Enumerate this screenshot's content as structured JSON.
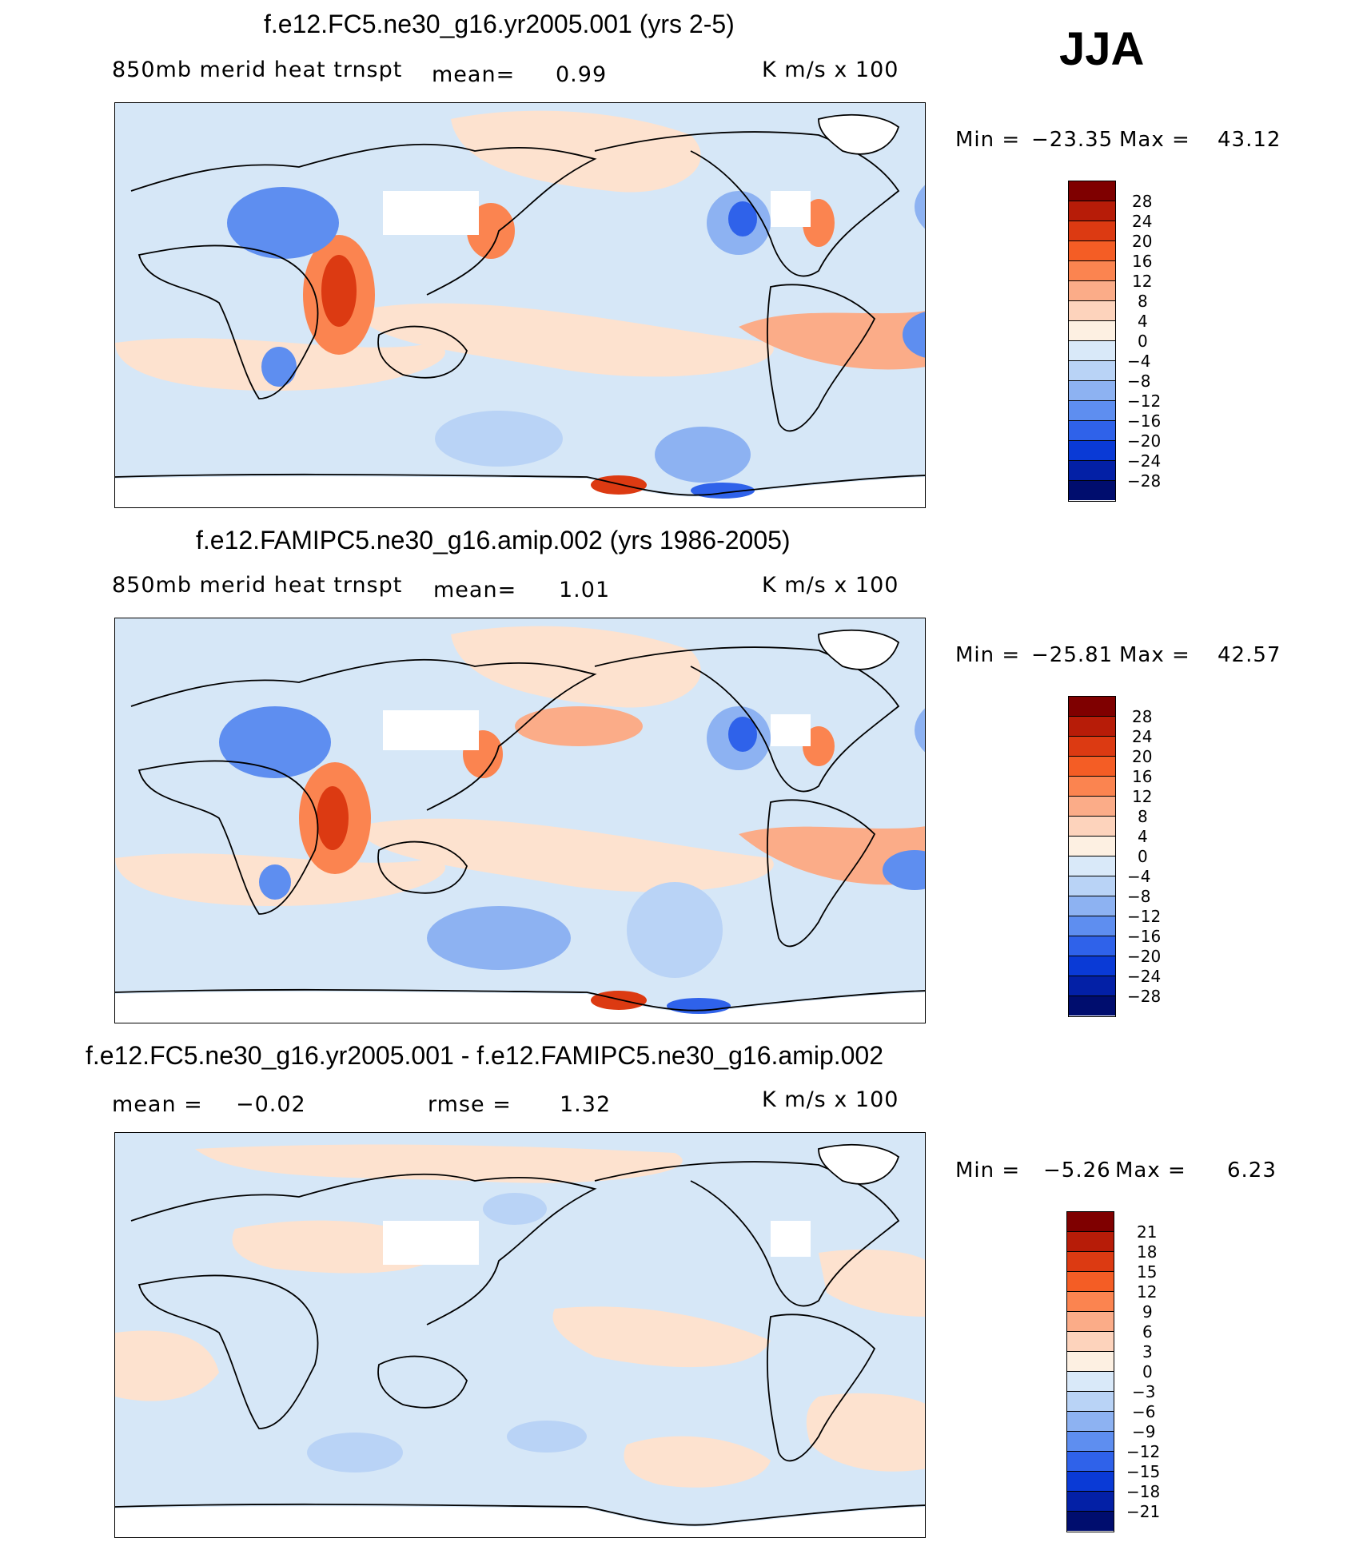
{
  "season": "JJA",
  "colors": {
    "legend_14": [
      "#7f0000",
      "#b71c08",
      "#dc3a12",
      "#f45d25",
      "#fb8450",
      "#fbac88",
      "#fdd3bc",
      "#fdf0e2",
      "#d9e9f9",
      "#b9d3f6",
      "#8db2f2",
      "#5e8ef0",
      "#2f62ea",
      "#0a3ad6",
      "#0320a6",
      "#000d6e"
    ],
    "ocean_neutral": "#d6e7f7",
    "warm_light": "#fde2cf",
    "coast": "#000000"
  },
  "panels": [
    {
      "title": "f.e12.FC5.ne30_g16.yr2005.001 (yrs 2-5)",
      "left_label": "850mb  merid  heat  trnspt",
      "mean_label": "mean=",
      "mean_value": "0.99",
      "units": "K  m/s  x  100",
      "min_label": "Min  =",
      "min_value": "−23.35",
      "max_label": "Max  =",
      "max_value": "43.12",
      "colorbar_labels": [
        "28",
        "24",
        "20",
        "16",
        "12",
        "8",
        "4",
        "0",
        "−4",
        "−8",
        "−12",
        "−16",
        "−20",
        "−24",
        "−28"
      ]
    },
    {
      "title": "f.e12.FAMIPC5.ne30_g16.amip.002 (yrs 1986-2005)",
      "left_label": "850mb  merid  heat  trnspt",
      "mean_label": "mean=",
      "mean_value": "1.01",
      "units": "K  m/s  x  100",
      "min_label": "Min  =",
      "min_value": "−25.81",
      "max_label": "Max  =",
      "max_value": "42.57",
      "colorbar_labels": [
        "28",
        "24",
        "20",
        "16",
        "12",
        "8",
        "4",
        "0",
        "−4",
        "−8",
        "−12",
        "−16",
        "−20",
        "−24",
        "−28"
      ]
    },
    {
      "title": "f.e12.FC5.ne30_g16.yr2005.001 - f.e12.FAMIPC5.ne30_g16.amip.002",
      "mean_label": "mean  =",
      "mean_value": "−0.02",
      "rmse_label": "rmse  =",
      "rmse_value": "1.32",
      "units": "K  m/s  x  100",
      "min_label": "Min  =",
      "min_value": "−5.26",
      "max_label": "Max  =",
      "max_value": "6.23",
      "colorbar_labels": [
        "21",
        "18",
        "15",
        "12",
        "9",
        "6",
        "3",
        "0",
        "−3",
        "−6",
        "−9",
        "−12",
        "−15",
        "−18",
        "−21"
      ]
    }
  ],
  "chart_data": [
    {
      "type": "heatmap",
      "title": "f.e12.FC5.ne30_g16.yr2005.001 (yrs 2-5)",
      "variable": "850mb merid heat trnspt",
      "units": "K m/s x 100",
      "mean": 0.99,
      "min": -23.35,
      "max": 43.12,
      "contour_levels": [
        -28,
        -24,
        -20,
        -16,
        -12,
        -8,
        -4,
        0,
        4,
        8,
        12,
        16,
        20,
        24,
        28
      ]
    },
    {
      "type": "heatmap",
      "title": "f.e12.FAMIPC5.ne30_g16.amip.002 (yrs 1986-2005)",
      "variable": "850mb merid heat trnspt",
      "units": "K m/s x 100",
      "mean": 1.01,
      "min": -25.81,
      "max": 42.57,
      "contour_levels": [
        -28,
        -24,
        -20,
        -16,
        -12,
        -8,
        -4,
        0,
        4,
        8,
        12,
        16,
        20,
        24,
        28
      ]
    },
    {
      "type": "heatmap",
      "title": "f.e12.FC5.ne30_g16.yr2005.001 - f.e12.FAMIPC5.ne30_g16.amip.002",
      "units": "K m/s x 100",
      "mean": -0.02,
      "rmse": 1.32,
      "min": -5.26,
      "max": 6.23,
      "contour_levels": [
        -21,
        -18,
        -15,
        -12,
        -9,
        -6,
        -3,
        0,
        3,
        6,
        9,
        12,
        15,
        18,
        21
      ]
    }
  ]
}
